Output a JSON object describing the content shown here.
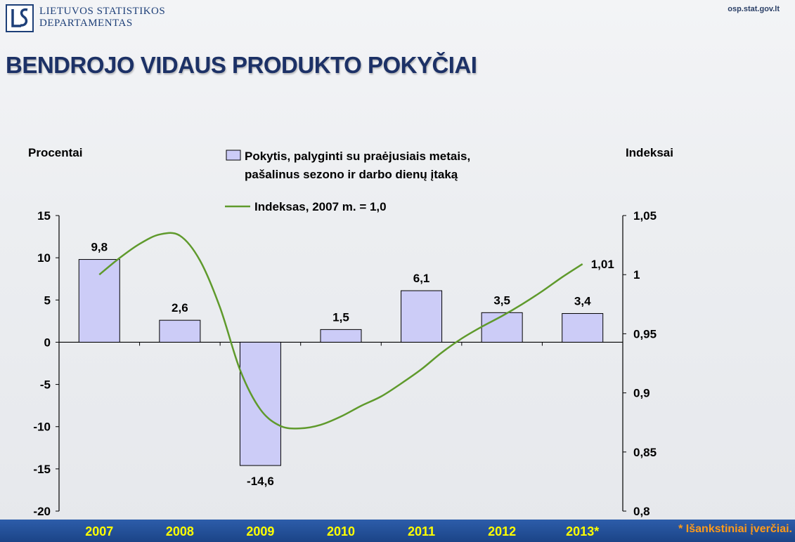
{
  "header": {
    "org_line1": "LIETUVOS STATISTIKOS",
    "org_line2": "DEPARTAMENTAS",
    "site": "osp.stat.gov.lt",
    "title": "BENDROJO VIDAUS PRODUKTO POKYČIAI"
  },
  "footnote": "* Išankstiniai įverčiai.",
  "colors": {
    "bar_fill": "#ccccf7",
    "line": "#5f9a2c",
    "title": "#1c3166",
    "band": "#1f4a8f",
    "year_label": "#ffff00",
    "footnote": "#ff9a1a"
  },
  "chart_data": {
    "type": "bar",
    "categories": [
      "2007",
      "2008",
      "2009",
      "2010",
      "2011",
      "2012",
      "2013*"
    ],
    "left_axis": {
      "label": "Procentai",
      "ylim": [
        -20,
        15
      ],
      "ticks": [
        "15",
        "10",
        "5",
        "0",
        "-5",
        "-10",
        "-15",
        "-20"
      ]
    },
    "right_axis": {
      "label": "Indeksai",
      "ylim": [
        0.8,
        1.05
      ],
      "ticks": [
        "1,05",
        "1",
        "0,95",
        "0,9",
        "0,85",
        "0,8"
      ]
    },
    "series": [
      {
        "name": "Pokytis, palyginti su praėjusiais metais, pašalinus sezono ir darbo dienų įtaką",
        "name_line1": "Pokytis, palyginti su praėjusiais metais,",
        "name_line2": "pašalinus sezono ir darbo dienų įtaką",
        "type": "bar",
        "axis": "left",
        "values": [
          9.8,
          2.6,
          -14.6,
          1.5,
          6.1,
          3.5,
          3.4
        ],
        "labels": [
          "9,8",
          "2,6",
          "-14,6",
          "1,5",
          "6,1",
          "3,5",
          "3,4"
        ]
      },
      {
        "name": "Indeksas, 2007 m. = 1,0",
        "type": "line",
        "axis": "right",
        "x": [
          0,
          0.25,
          0.5,
          0.75,
          1,
          1.25,
          1.5,
          1.75,
          2,
          2.25,
          2.5,
          2.75,
          3,
          3.25,
          3.5,
          3.75,
          4,
          4.25,
          4.5,
          4.75,
          5,
          5.25,
          5.5,
          5.75,
          6
        ],
        "values": [
          1.0,
          1.014,
          1.026,
          1.034,
          1.033,
          1.012,
          0.972,
          0.919,
          0.886,
          0.872,
          0.87,
          0.873,
          0.88,
          0.889,
          0.897,
          0.908,
          0.92,
          0.934,
          0.946,
          0.956,
          0.965,
          0.975,
          0.986,
          0.998,
          1.009
        ],
        "end_label": "1,01"
      }
    ],
    "legend_position": "top-center",
    "grid": false
  }
}
